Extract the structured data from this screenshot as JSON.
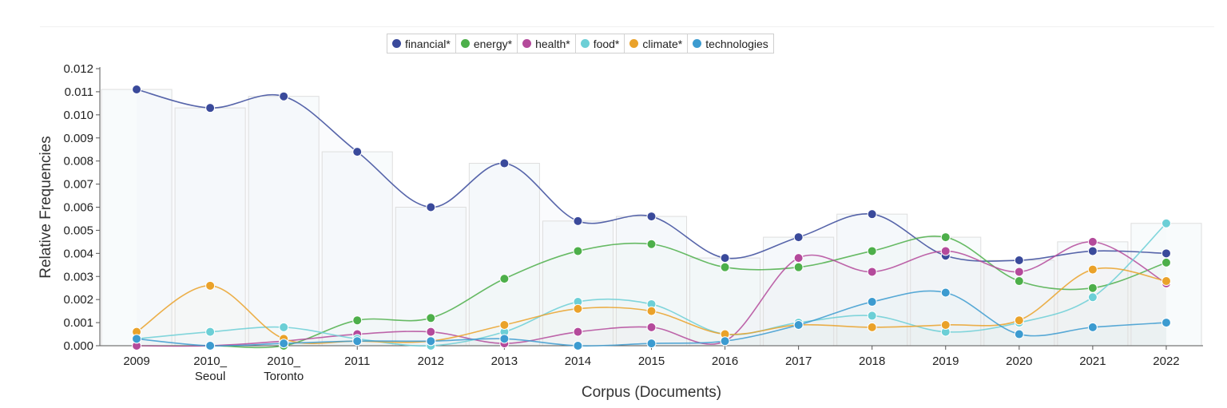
{
  "chart_data": {
    "type": "line",
    "title": "",
    "xlabel": "Corpus (Documents)",
    "ylabel": "Relative Frequencies",
    "ylim": [
      0,
      0.012
    ],
    "yticks": [
      "0.000",
      "0.001",
      "0.002",
      "0.003",
      "0.004",
      "0.005",
      "0.006",
      "0.007",
      "0.008",
      "0.009",
      "0.010",
      "0.011",
      "0.012"
    ],
    "categories": [
      {
        "line1": "2009",
        "line2": ""
      },
      {
        "line1": "2010_",
        "line2": "Seoul"
      },
      {
        "line1": "2010_",
        "line2": "Toronto"
      },
      {
        "line1": "2011",
        "line2": ""
      },
      {
        "line1": "2012",
        "line2": ""
      },
      {
        "line1": "2013",
        "line2": ""
      },
      {
        "line1": "2014",
        "line2": ""
      },
      {
        "line1": "2015",
        "line2": ""
      },
      {
        "line1": "2016",
        "line2": ""
      },
      {
        "line1": "2017",
        "line2": ""
      },
      {
        "line1": "2018",
        "line2": ""
      },
      {
        "line1": "2019",
        "line2": ""
      },
      {
        "line1": "2020",
        "line2": ""
      },
      {
        "line1": "2021",
        "line2": ""
      },
      {
        "line1": "2022",
        "line2": ""
      }
    ],
    "legend_position": "top-center",
    "series": [
      {
        "name": "financial*",
        "color": "#3a4a9b",
        "values": [
          0.0111,
          0.0103,
          0.0108,
          0.0084,
          0.006,
          0.0079,
          0.0054,
          0.0056,
          0.0038,
          0.0047,
          0.0057,
          0.0039,
          0.0037,
          0.0041,
          0.004
        ]
      },
      {
        "name": "energy*",
        "color": "#4daf4a",
        "values": [
          0.0,
          0.0,
          0.0,
          0.0011,
          0.0012,
          0.0029,
          0.0041,
          0.0044,
          0.0034,
          0.0034,
          0.0041,
          0.0047,
          0.0028,
          0.0025,
          0.0036
        ]
      },
      {
        "name": "health*",
        "color": "#b44a9b",
        "values": [
          0.0,
          0.0,
          0.0002,
          0.0005,
          0.0006,
          0.0001,
          0.0006,
          0.0008,
          0.0002,
          0.0038,
          0.0032,
          0.0041,
          0.0032,
          0.0045,
          0.0027
        ]
      },
      {
        "name": "food*",
        "color": "#6ccfd6",
        "values": [
          0.0003,
          0.0006,
          0.0008,
          0.0003,
          0.0,
          0.0006,
          0.0019,
          0.0018,
          0.0005,
          0.001,
          0.0013,
          0.0006,
          0.001,
          0.0021,
          0.0053
        ]
      },
      {
        "name": "climate*",
        "color": "#eaa22a",
        "values": [
          0.0006,
          0.0026,
          0.0003,
          0.0002,
          0.0002,
          0.0009,
          0.0016,
          0.0015,
          0.0005,
          0.0009,
          0.0008,
          0.0009,
          0.0011,
          0.0033,
          0.0028
        ]
      },
      {
        "name": "technologies",
        "color": "#3c9bd0",
        "values": [
          0.0003,
          0.0,
          0.0001,
          0.0002,
          0.0002,
          0.0003,
          0.0,
          0.0001,
          0.0002,
          0.0009,
          0.0019,
          0.0023,
          0.0005,
          0.0008,
          0.001
        ]
      }
    ]
  }
}
